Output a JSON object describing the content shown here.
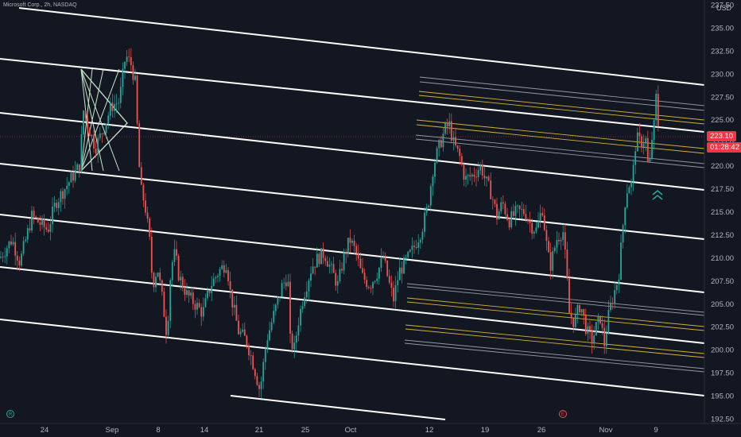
{
  "header": {
    "symbol": "Microsoft Corp., 2h, NASDAQ",
    "currency": "USD"
  },
  "price_tags": {
    "last_price": "223.10",
    "countdown": "01:28:42"
  },
  "colors": {
    "background": "#131722",
    "bull": "#26a69a",
    "bear": "#ef5350",
    "channel": "#ffffff",
    "fib_gray": "#9598a1",
    "fib_yellow": "#d4b334",
    "fan": "#c8e6c9",
    "price_tag": "#f23645",
    "arrow": "#26a69a"
  },
  "icons": {
    "marker_left": "R",
    "marker_mid": "E"
  },
  "chart_data": {
    "type": "candlestick",
    "title": "Microsoft Corp., 2h, NASDAQ",
    "ylabel": "USD",
    "ylim": [
      191.5,
      238.5
    ],
    "y_ticks": [
      "192.50",
      "195.00",
      "197.50",
      "200.00",
      "202.50",
      "205.00",
      "207.50",
      "210.00",
      "212.50",
      "215.00",
      "217.50",
      "220.00",
      "222.50",
      "225.00",
      "227.50",
      "230.00",
      "232.50",
      "235.00",
      "237.50"
    ],
    "x_ticks": [
      {
        "label": "24",
        "t": 56
      },
      {
        "label": "Sep",
        "t": 141
      },
      {
        "label": "8",
        "t": 199
      },
      {
        "label": "14",
        "t": 257
      },
      {
        "label": "21",
        "t": 326
      },
      {
        "label": "25",
        "t": 384
      },
      {
        "label": "Oct",
        "t": 441
      },
      {
        "label": "12",
        "t": 540
      },
      {
        "label": "19",
        "t": 610
      },
      {
        "label": "26",
        "t": 681
      },
      {
        "label": "Nov",
        "t": 762
      },
      {
        "label": "9",
        "t": 825
      }
    ],
    "price_path": [
      [
        0,
        210
      ],
      [
        15,
        212
      ],
      [
        25,
        209.5
      ],
      [
        40,
        214.5
      ],
      [
        60,
        213
      ],
      [
        70,
        216
      ],
      [
        85,
        218
      ],
      [
        100,
        220
      ],
      [
        105,
        226
      ],
      [
        110,
        224.5
      ],
      [
        120,
        222
      ],
      [
        130,
        224
      ],
      [
        140,
        226.5
      ],
      [
        150,
        227
      ],
      [
        158,
        232
      ],
      [
        165,
        231
      ],
      [
        170,
        229
      ],
      [
        175,
        220
      ],
      [
        178,
        217
      ],
      [
        182,
        216
      ],
      [
        188,
        212
      ],
      [
        192,
        207
      ],
      [
        198,
        209
      ],
      [
        205,
        205
      ],
      [
        210,
        201.5
      ],
      [
        215,
        209
      ],
      [
        220,
        210.5
      ],
      [
        225,
        208
      ],
      [
        235,
        206
      ],
      [
        245,
        205
      ],
      [
        255,
        204
      ],
      [
        265,
        207
      ],
      [
        275,
        208.5
      ],
      [
        285,
        209.5
      ],
      [
        290,
        206
      ],
      [
        300,
        202
      ],
      [
        310,
        201
      ],
      [
        320,
        198
      ],
      [
        327,
        195.5
      ],
      [
        335,
        201
      ],
      [
        345,
        204
      ],
      [
        355,
        207
      ],
      [
        362,
        208
      ],
      [
        365,
        201
      ],
      [
        370,
        200
      ],
      [
        375,
        203
      ],
      [
        382,
        206
      ],
      [
        392,
        209
      ],
      [
        400,
        210
      ],
      [
        408,
        210.5
      ],
      [
        415,
        209
      ],
      [
        425,
        207
      ],
      [
        432,
        210
      ],
      [
        440,
        212
      ],
      [
        448,
        210.5
      ],
      [
        455,
        208
      ],
      [
        465,
        207
      ],
      [
        475,
        208.5
      ],
      [
        482,
        210
      ],
      [
        490,
        207
      ],
      [
        495,
        205.5
      ],
      [
        502,
        208.5
      ],
      [
        510,
        209.5
      ],
      [
        520,
        211
      ],
      [
        530,
        213
      ],
      [
        538,
        215.5
      ],
      [
        545,
        220
      ],
      [
        552,
        222
      ],
      [
        560,
        224
      ],
      [
        565,
        224.5
      ],
      [
        570,
        222.5
      ],
      [
        578,
        221
      ],
      [
        585,
        218.5
      ],
      [
        595,
        219
      ],
      [
        605,
        220
      ],
      [
        610,
        218.5
      ],
      [
        618,
        217
      ],
      [
        625,
        214.5
      ],
      [
        632,
        216
      ],
      [
        640,
        214
      ],
      [
        650,
        215
      ],
      [
        660,
        215
      ],
      [
        668,
        213.5
      ],
      [
        675,
        213
      ],
      [
        682,
        215.5
      ],
      [
        688,
        211
      ],
      [
        692,
        209
      ],
      [
        700,
        212
      ],
      [
        708,
        213
      ],
      [
        712,
        209
      ],
      [
        716,
        204
      ],
      [
        722,
        203
      ],
      [
        730,
        205
      ],
      [
        738,
        202
      ],
      [
        745,
        201
      ],
      [
        750,
        202.5
      ],
      [
        755,
        203.5
      ],
      [
        760,
        200.5
      ],
      [
        766,
        204
      ],
      [
        772,
        206
      ],
      [
        778,
        208
      ],
      [
        782,
        212
      ],
      [
        786,
        216
      ],
      [
        790,
        218
      ],
      [
        795,
        218
      ],
      [
        800,
        223
      ],
      [
        806,
        222.5
      ],
      [
        812,
        223
      ],
      [
        816,
        219
      ],
      [
        820,
        223
      ],
      [
        824,
        225
      ],
      [
        826,
        229
      ],
      [
        828,
        224
      ],
      [
        830,
        223.1
      ]
    ],
    "last_price": 223.1
  }
}
